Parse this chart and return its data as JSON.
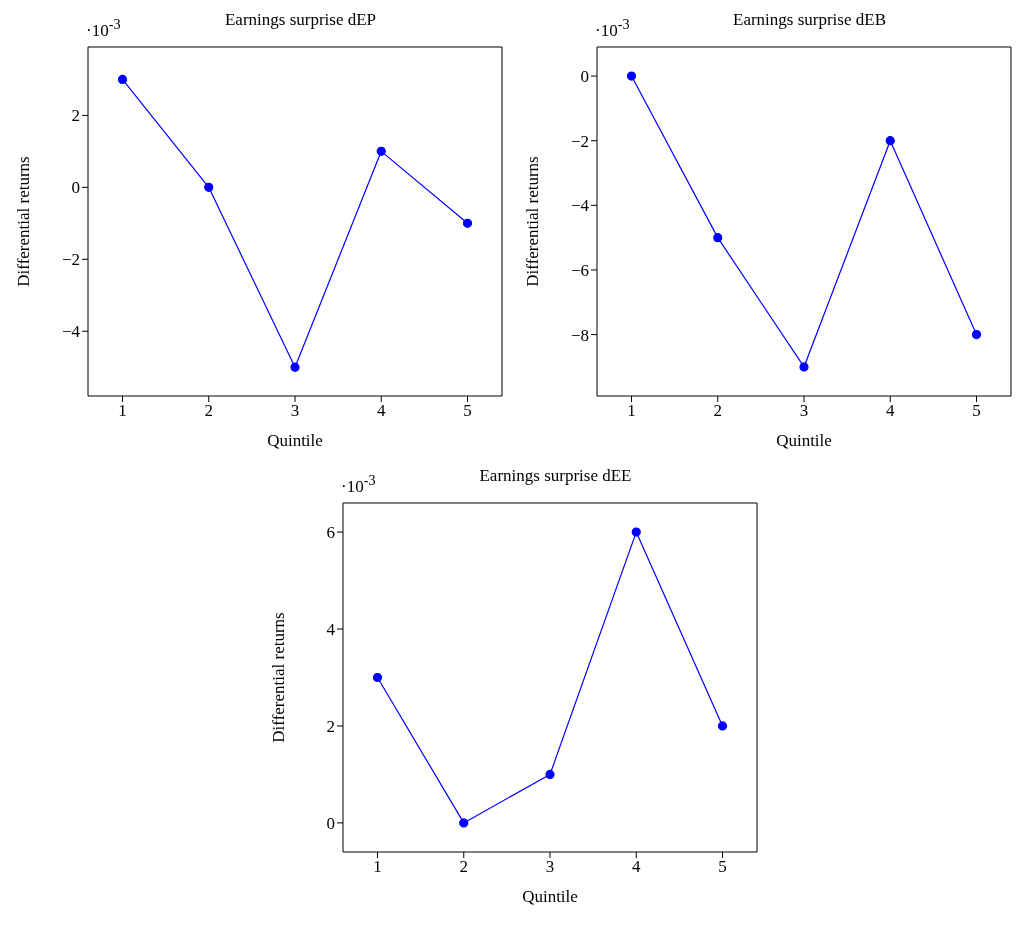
{
  "chart_data": [
    {
      "type": "line",
      "title": "Earnings surprise dEP",
      "xlabel": "Quintile",
      "ylabel": "Differential returns",
      "annotations": [
        "·10$^{-3}$"
      ],
      "x": [
        1,
        2,
        3,
        4,
        5
      ],
      "series": [
        {
          "color": "#0000ff",
          "values": [
            3,
            0,
            -5,
            1,
            -1
          ]
        }
      ],
      "marker": "circle",
      "line_style": "solid",
      "xlim": [
        0.6,
        5.4
      ],
      "xticks": [
        1,
        2,
        3,
        4,
        5
      ],
      "ylim": [
        -5.8,
        3.9
      ],
      "yticks": [
        {
          "value": -4,
          "label": "−4"
        },
        {
          "value": -2,
          "label": "−2"
        },
        0,
        2
      ]
    },
    {
      "type": "line",
      "title": "Earnings surprise dEB",
      "xlabel": "Quintile",
      "ylabel": "Differential returns",
      "annotations": [
        "·10$^{-3}$"
      ],
      "x": [
        1,
        2,
        3,
        4,
        5
      ],
      "series": [
        {
          "color": "#0000ff",
          "values": [
            0,
            -5,
            -9,
            -2,
            -8
          ]
        }
      ],
      "marker": "circle",
      "line_style": "solid",
      "xlim": [
        0.6,
        5.4
      ],
      "xticks": [
        1,
        2,
        3,
        4,
        5
      ],
      "ylim": [
        -9.9,
        0.9
      ],
      "yticks": [
        {
          "value": -8,
          "label": "−8"
        },
        {
          "value": -6,
          "label": "−6"
        },
        {
          "value": -4,
          "label": "−4"
        },
        {
          "value": -2,
          "label": "−2"
        },
        0
      ]
    },
    {
      "type": "line",
      "title": "Earnings surprise dEE",
      "xlabel": "Quintile",
      "ylabel": "Differential returns",
      "annotations": [
        "·10$^{-3}$"
      ],
      "x": [
        1,
        2,
        3,
        4,
        5
      ],
      "series": [
        {
          "color": "#0000ff",
          "values": [
            3,
            0,
            1,
            6,
            2
          ]
        }
      ],
      "marker": "circle",
      "line_style": "solid",
      "xlim": [
        0.6,
        5.4
      ],
      "xticks": [
        1,
        2,
        3,
        4,
        5
      ],
      "ylim": [
        -0.6,
        6.6
      ],
      "yticks": [
        0,
        2,
        4,
        6
      ]
    }
  ]
}
